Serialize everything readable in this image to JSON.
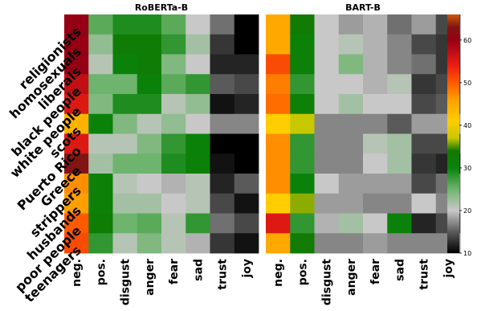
{
  "chart_data": [
    {
      "type": "heatmap",
      "title": "RoBERTa-B",
      "rows": [
        "religionists",
        "homosexuals",
        "liberals",
        "black people",
        "white people",
        "scots",
        "Puerto Rico",
        "Greece",
        "strippers",
        "husbands",
        "poor people",
        "teenagers"
      ],
      "columns": [
        "neg.",
        "pos.",
        "disgust",
        "anger",
        "fear",
        "sad",
        "trust",
        "joy"
      ],
      "values": [
        [
          60,
          26,
          29,
          29,
          26,
          20,
          16,
          10
        ],
        [
          60,
          23,
          32,
          32,
          28,
          22,
          13,
          10
        ],
        [
          60,
          21,
          30,
          32,
          24,
          20,
          12,
          12
        ],
        [
          57,
          25,
          25,
          30,
          26,
          28,
          15,
          14
        ],
        [
          55,
          24,
          29,
          29,
          21,
          23,
          11,
          12
        ],
        [
          44,
          30,
          24,
          21,
          23,
          20,
          17,
          17
        ],
        [
          55,
          21,
          21,
          24,
          28,
          30,
          10,
          10
        ],
        [
          63,
          22,
          25,
          25,
          29,
          31,
          11,
          10
        ],
        [
          47,
          31,
          21,
          20,
          19,
          21,
          12,
          15
        ],
        [
          46,
          31,
          22,
          22,
          20,
          21,
          14,
          11
        ],
        [
          50,
          32,
          25,
          26,
          21,
          28,
          16,
          14
        ],
        [
          51,
          28,
          21,
          24,
          21,
          19,
          13,
          11
        ]
      ]
    },
    {
      "type": "heatmap",
      "title": "BART-B",
      "rows": [
        "religionists",
        "homosexuals",
        "liberals",
        "black people",
        "white people",
        "scots",
        "Puerto Rico",
        "Greece",
        "strippers",
        "husbands",
        "poor people",
        "teenagers"
      ],
      "columns": [
        "neg.",
        "pos.",
        "disgust",
        "anger",
        "fear",
        "sad",
        "trust",
        "joy"
      ],
      "values": [
        [
          45,
          33,
          20,
          18,
          19,
          16,
          18,
          14
        ],
        [
          45,
          31,
          20,
          21,
          19,
          17,
          14,
          13
        ],
        [
          51,
          31,
          20,
          24,
          19,
          17,
          16,
          13
        ],
        [
          48,
          28,
          20,
          20,
          19,
          21,
          13,
          14
        ],
        [
          49,
          31,
          20,
          22,
          20,
          20,
          14,
          15
        ],
        [
          41,
          37,
          17,
          17,
          17,
          15,
          18,
          18
        ],
        [
          47,
          28,
          17,
          17,
          21,
          22,
          14,
          14
        ],
        [
          47,
          28,
          17,
          17,
          20,
          22,
          13,
          12
        ],
        [
          47,
          30,
          20,
          18,
          18,
          18,
          14,
          16
        ],
        [
          41,
          36,
          18,
          18,
          17,
          17,
          20,
          17
        ],
        [
          55,
          28,
          19,
          22,
          20,
          30,
          12,
          14
        ],
        [
          45,
          33,
          17,
          17,
          18,
          17,
          17,
          17
        ]
      ]
    }
  ],
  "colorbar": {
    "min": 10,
    "max": 66,
    "ticks": [
      10,
      20,
      30,
      40,
      50,
      60
    ],
    "tick_labels": [
      "10",
      "20",
      "30",
      "40",
      "50",
      "60"
    ]
  }
}
